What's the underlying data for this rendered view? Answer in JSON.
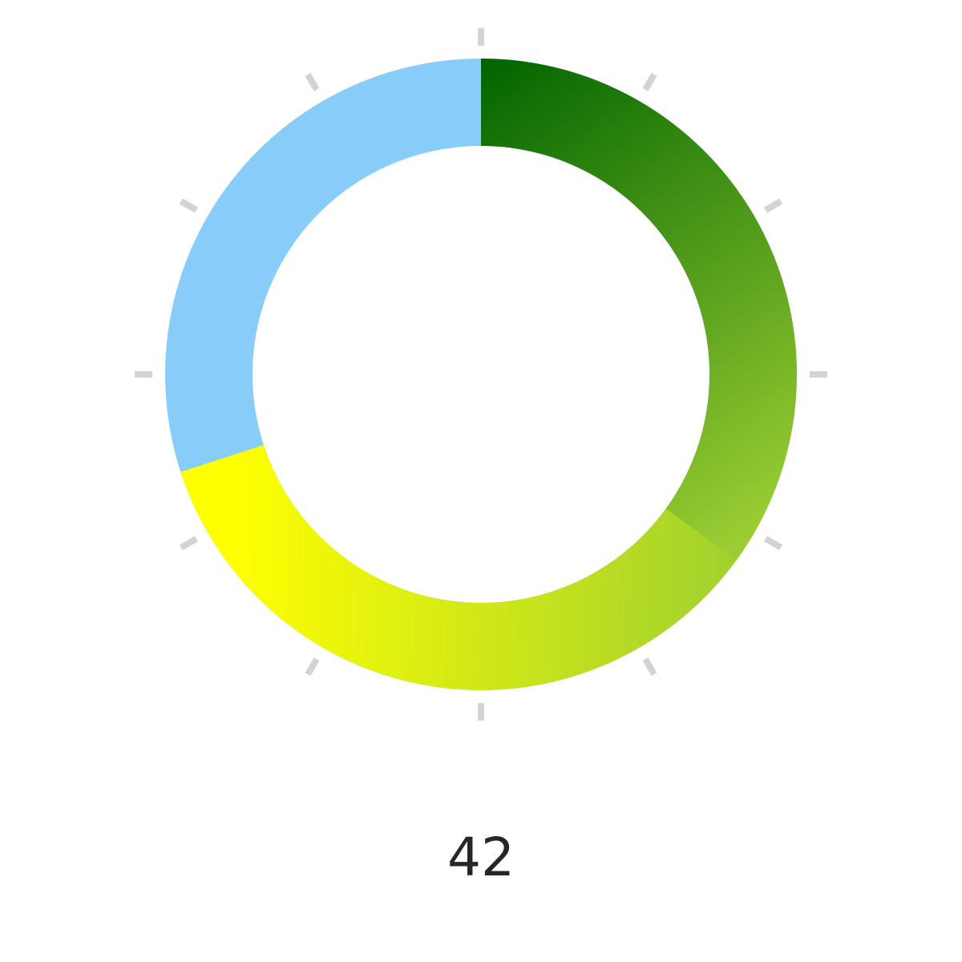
{
  "chart_data": {
    "type": "gauge",
    "value": "42",
    "fraction": 0.7,
    "tick_count": 12,
    "colors": {
      "track": "#88cdfa",
      "arc_start": "#006400",
      "arc_mid": "#9acd32",
      "arc_end": "#ffff00",
      "tick": "#d3d3d3",
      "value_text": "#262626"
    }
  }
}
